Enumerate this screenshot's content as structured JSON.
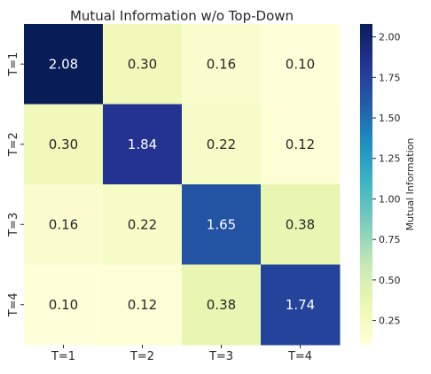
{
  "chart_data": {
    "type": "heatmap",
    "title": "Mutual Information w/o Top-Down",
    "x_categories": [
      "T=1",
      "T=2",
      "T=3",
      "T=4"
    ],
    "y_categories": [
      "T=1",
      "T=2",
      "T=3",
      "T=4"
    ],
    "values": [
      [
        2.08,
        0.3,
        0.16,
        0.1
      ],
      [
        0.3,
        1.84,
        0.22,
        0.12
      ],
      [
        0.16,
        0.22,
        1.65,
        0.38
      ],
      [
        0.1,
        0.12,
        0.38,
        1.74
      ]
    ],
    "value_labels": [
      [
        "2.08",
        "0.30",
        "0.16",
        "0.10"
      ],
      [
        "0.30",
        "1.84",
        "0.22",
        "0.12"
      ],
      [
        "0.16",
        "0.22",
        "1.65",
        "0.38"
      ],
      [
        "0.10",
        "0.12",
        "0.38",
        "1.74"
      ]
    ],
    "colormap": "YlGnBu",
    "colorbar": {
      "label": "Mutual Information",
      "range": [
        0.1,
        2.08
      ],
      "ticks": [
        0.25,
        0.5,
        0.75,
        1.0,
        1.25,
        1.5,
        1.75,
        2.0
      ],
      "tick_labels": [
        "0.25",
        "0.50",
        "0.75",
        "1.00",
        "1.25",
        "1.50",
        "1.75",
        "2.00"
      ]
    }
  }
}
